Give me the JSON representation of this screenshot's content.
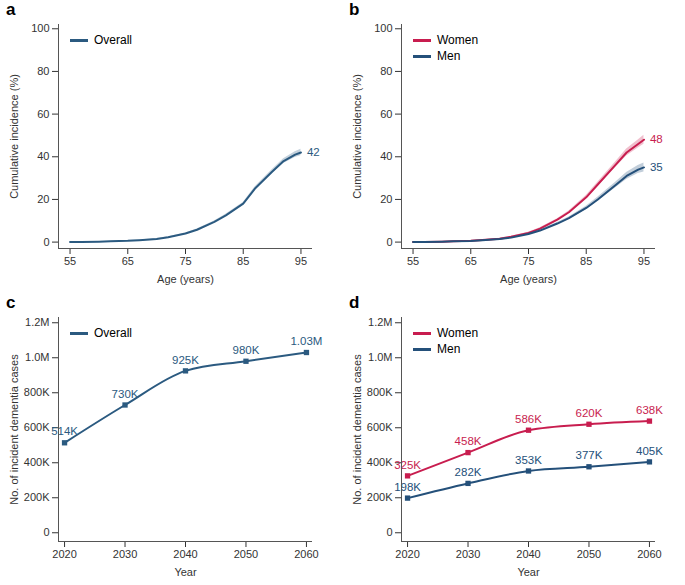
{
  "chart_data": [
    {
      "type": "line",
      "title": "a",
      "x_label": "Age (years)",
      "y_label": "Cumulative incidence (%)",
      "x": [
        55,
        57,
        60,
        62,
        65,
        67,
        70,
        72,
        75,
        77,
        80,
        82,
        85,
        87,
        90,
        92,
        94,
        95
      ],
      "series": [
        {
          "name": "Overall",
          "color": "#2b5a80",
          "values": [
            0,
            0.05,
            0.2,
            0.35,
            0.6,
            0.9,
            1.5,
            2.3,
            4,
            5.8,
            9.5,
            12.5,
            18,
            25,
            33,
            38,
            41,
            42
          ],
          "lower": [
            0,
            0.05,
            0.15,
            0.3,
            0.5,
            0.8,
            1.35,
            2.1,
            3.75,
            5.5,
            9.1,
            12,
            17.4,
            24.3,
            32.1,
            36.9,
            39.7,
            40.5
          ],
          "upper": [
            0,
            0.05,
            0.25,
            0.4,
            0.7,
            1,
            1.65,
            2.5,
            4.25,
            6.1,
            9.9,
            13,
            18.6,
            25.7,
            33.9,
            39.1,
            42.3,
            43.5
          ]
        }
      ],
      "annotations": [
        {
          "text": "42",
          "x": 95,
          "y": 42,
          "series": "Overall"
        }
      ],
      "xlim": [
        53,
        97
      ],
      "xticks": [
        55,
        65,
        75,
        85,
        95
      ],
      "ylim": [
        -3,
        102
      ],
      "yticks": [
        0,
        20,
        40,
        60,
        80,
        100
      ],
      "legend": "upper left",
      "grid": false
    },
    {
      "type": "line",
      "title": "b",
      "x_label": "Age (years)",
      "y_label": "Cumulative incidence (%)",
      "x": [
        55,
        57,
        60,
        62,
        65,
        67,
        70,
        72,
        75,
        77,
        80,
        82,
        85,
        87,
        90,
        92,
        94,
        95
      ],
      "series": [
        {
          "name": "Women",
          "color": "#c81d4f",
          "values": [
            0,
            0.05,
            0.2,
            0.35,
            0.6,
            1,
            1.6,
            2.5,
            4.3,
            6.3,
            10.5,
            14,
            21,
            27,
            36,
            42,
            46,
            48
          ],
          "lower": [
            0,
            0.05,
            0.15,
            0.3,
            0.5,
            0.85,
            1.4,
            2.25,
            4,
            5.9,
            10,
            13.4,
            20.2,
            26,
            34.7,
            40.4,
            44.1,
            45.9
          ],
          "upper": [
            0,
            0.05,
            0.25,
            0.4,
            0.7,
            1.15,
            1.8,
            2.75,
            4.6,
            6.7,
            11,
            14.6,
            21.8,
            28,
            37.3,
            43.6,
            47.9,
            50.1
          ]
        },
        {
          "name": "Men",
          "color": "#24507a",
          "values": [
            0,
            0.05,
            0.2,
            0.35,
            0.55,
            0.85,
            1.4,
            2.1,
            3.8,
            5.4,
            8.7,
            11.2,
            16,
            20,
            26.5,
            31,
            34,
            35
          ],
          "lower": [
            0,
            0.05,
            0.15,
            0.3,
            0.45,
            0.7,
            1.2,
            1.85,
            3.5,
            5,
            8.2,
            10.6,
            15.2,
            19,
            25.2,
            29.4,
            32.1,
            32.9
          ],
          "upper": [
            0,
            0.05,
            0.25,
            0.4,
            0.65,
            1,
            1.6,
            2.35,
            4.1,
            5.8,
            9.2,
            11.8,
            16.8,
            21,
            27.8,
            32.6,
            35.9,
            37.1
          ]
        }
      ],
      "annotations": [
        {
          "text": "48",
          "x": 95,
          "y": 48,
          "series": "Women"
        },
        {
          "text": "35",
          "x": 95,
          "y": 35,
          "series": "Men"
        }
      ],
      "xlim": [
        53,
        97
      ],
      "xticks": [
        55,
        65,
        75,
        85,
        95
      ],
      "ylim": [
        -3,
        102
      ],
      "yticks": [
        0,
        20,
        40,
        60,
        80,
        100
      ],
      "legend": "upper left",
      "grid": false
    },
    {
      "type": "line",
      "title": "c",
      "x_label": "Year",
      "y_label": "No. of incident dementia cases",
      "x": [
        2020,
        2030,
        2040,
        2050,
        2060
      ],
      "series": [
        {
          "name": "Overall",
          "color": "#2b5a80",
          "values": [
            514000,
            730000,
            925000,
            980000,
            1030000
          ],
          "value_labels": [
            "514K",
            "730K",
            "925K",
            "980K",
            "1.03M"
          ]
        }
      ],
      "xlim": [
        2019,
        2061
      ],
      "xticks": [
        2020,
        2030,
        2040,
        2050,
        2060
      ],
      "ylim": [
        -50000,
        1230000
      ],
      "yticks": [
        0,
        {
          "value": 200000,
          "label": "200K"
        },
        {
          "value": 400000,
          "label": "400K"
        },
        {
          "value": 600000,
          "label": "600K"
        },
        {
          "value": 800000,
          "label": "800K"
        },
        {
          "value": 1000000,
          "label": "1.0M"
        },
        {
          "value": 1200000,
          "label": "1.2M"
        }
      ],
      "marker": "square",
      "data_labels": true,
      "legend": "upper left",
      "grid": false
    },
    {
      "type": "line",
      "title": "d",
      "x_label": "Year",
      "y_label": "No. of incident dementia cases",
      "x": [
        2020,
        2030,
        2040,
        2050,
        2060
      ],
      "series": [
        {
          "name": "Women",
          "color": "#c81d4f",
          "values": [
            325000,
            458000,
            586000,
            620000,
            638000
          ],
          "value_labels": [
            "325K",
            "458K",
            "586K",
            "620K",
            "638K"
          ]
        },
        {
          "name": "Men",
          "color": "#24507a",
          "values": [
            198000,
            282000,
            353000,
            377000,
            405000
          ],
          "value_labels": [
            "198K",
            "282K",
            "353K",
            "377K",
            "405K"
          ]
        }
      ],
      "xlim": [
        2019,
        2061
      ],
      "xticks": [
        2020,
        2030,
        2040,
        2050,
        2060
      ],
      "ylim": [
        -50000,
        1230000
      ],
      "yticks": [
        0,
        {
          "value": 200000,
          "label": "200K"
        },
        {
          "value": 400000,
          "label": "400K"
        },
        {
          "value": 600000,
          "label": "600K"
        },
        {
          "value": 800000,
          "label": "800K"
        },
        {
          "value": 1000000,
          "label": "1.0M"
        },
        {
          "value": 1200000,
          "label": "1.2M"
        }
      ],
      "marker": "square",
      "data_labels": true,
      "legend": "upper left",
      "grid": false
    }
  ]
}
